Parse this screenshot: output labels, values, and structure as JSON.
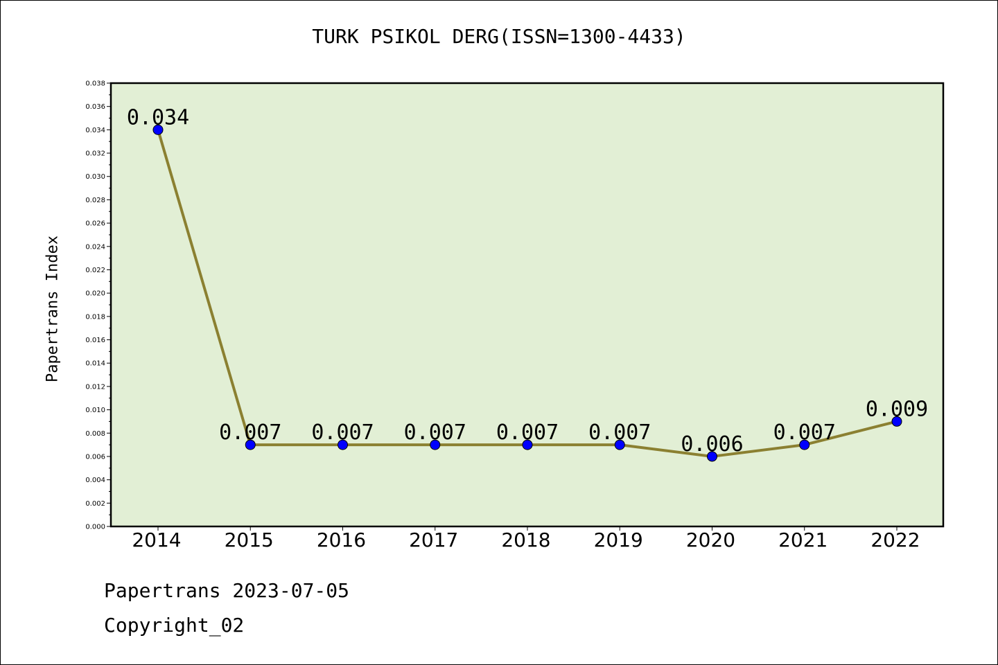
{
  "chart_data": {
    "type": "line",
    "title": "TURK PSIKOL DERG(ISSN=1300-4433)",
    "xlabel": "",
    "ylabel": "Papertrans Index",
    "categories": [
      "2014",
      "2015",
      "2016",
      "2017",
      "2018",
      "2019",
      "2020",
      "2021",
      "2022"
    ],
    "series": [
      {
        "values": [
          0.034,
          0.007,
          0.007,
          0.007,
          0.007,
          0.007,
          0.006,
          0.007,
          0.009
        ],
        "labels": [
          "0.034",
          "0.007",
          "0.007",
          "0.007",
          "0.007",
          "0.007",
          "0.006",
          "0.007",
          "0.009"
        ]
      }
    ],
    "ylim": [
      0,
      0.038
    ],
    "yticks": [
      "0.000",
      "0.002",
      "0.004",
      "0.006",
      "0.008",
      "0.010",
      "0.012",
      "0.014",
      "0.016",
      "0.018",
      "0.020",
      "0.022",
      "0.024",
      "0.026",
      "0.028",
      "0.030",
      "0.032",
      "0.034",
      "0.036",
      "0.038"
    ],
    "grid": false,
    "legend": "none",
    "colors": {
      "plot_background": "#e2efd5",
      "line": "#8b8031",
      "marker": "#0000ff"
    }
  },
  "footer": {
    "date_text": "Papertrans 2023-07-05",
    "copyright_text": "Copyright_02"
  }
}
